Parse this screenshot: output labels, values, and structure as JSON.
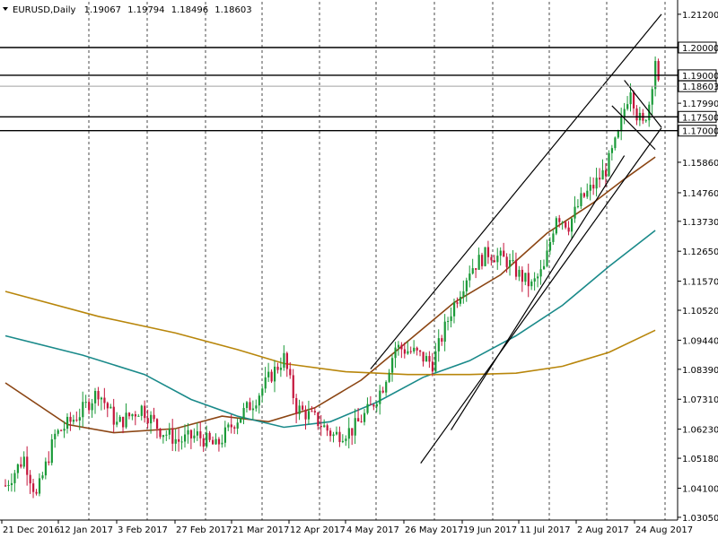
{
  "header": {
    "symbol": "EURUSD,Daily",
    "open": "1.19067",
    "high": "1.19794",
    "low": "1.18496",
    "close": "1.18603"
  },
  "colors": {
    "background": "#ffffff",
    "bull_candle": "#1a9a38",
    "bear_candle": "#c4163c",
    "ma_fast": "#8b4513",
    "ma_mid": "#1a8a8a",
    "ma_slow": "#b8860b",
    "lines": "#000000",
    "current_price_line": "#a0a0a0"
  },
  "chart_data": {
    "type": "candlestick",
    "title": "EURUSD,Daily",
    "ylim": [
      1.0295,
      1.2165
    ],
    "y_ticks": [
      "1.21200",
      "1.20000",
      "1.19000",
      "1.18603",
      "1.17990",
      "1.17500",
      "1.17000",
      "1.15860",
      "1.14760",
      "1.13730",
      "1.12650",
      "1.11570",
      "1.10520",
      "1.09440",
      "1.08390",
      "1.07310",
      "1.06230",
      "1.05180",
      "1.04100",
      "1.03050"
    ],
    "price_labels": [
      {
        "label": "1.20000",
        "value": 1.2
      },
      {
        "label": "1.19000",
        "value": 1.19
      },
      {
        "label": "1.18603",
        "value": 1.18603
      },
      {
        "label": "1.17500",
        "value": 1.175
      },
      {
        "label": "1.17000",
        "value": 1.17
      }
    ],
    "x_labels": [
      "21 Dec 2016",
      "12 Jan 2017",
      "3 Feb 2017",
      "27 Feb 2017",
      "21 Mar 2017",
      "12 Apr 2017",
      "4 May 2017",
      "26 May 2017",
      "19 Jun 2017",
      "11 Jul 2017",
      "2 Aug 2017",
      "24 Aug 2017"
    ],
    "horizontal_levels": [
      1.2,
      1.19,
      1.175,
      1.17
    ],
    "current_price": 1.18603,
    "trendlines": [
      {
        "name": "channel-upper",
        "from": [
          0,
          1.08
        ],
        "to": [
          0,
          1.2115
        ]
      },
      {
        "name": "channel-lower",
        "from": [
          0,
          1.05
        ],
        "to": [
          0,
          1.171
        ]
      },
      {
        "name": "channel-mid-lower",
        "from": [
          0,
          1.061
        ],
        "to": [
          0,
          1.182
        ]
      },
      {
        "name": "flag-upper",
        "from": [
          0,
          1.1882
        ],
        "to": [
          0,
          1.1712
        ]
      },
      {
        "name": "flag-lower",
        "from": [
          0,
          1.179
        ],
        "to": [
          0,
          1.1632
        ]
      }
    ],
    "moving_averages": [
      {
        "name": "MA-fast",
        "points": [
          [
            0,
            1.079
          ],
          [
            20,
            1.064
          ],
          [
            35,
            1.061
          ],
          [
            55,
            1.0625
          ],
          [
            70,
            1.067
          ],
          [
            85,
            1.065
          ],
          [
            100,
            1.07
          ],
          [
            115,
            1.08
          ],
          [
            130,
            1.094
          ],
          [
            145,
            1.108
          ],
          [
            160,
            1.118
          ],
          [
            175,
            1.133
          ],
          [
            190,
            1.144
          ],
          [
            200,
            1.1525
          ],
          [
            210,
            1.1605
          ]
        ]
      },
      {
        "name": "MA-mid",
        "points": [
          [
            0,
            1.096
          ],
          [
            25,
            1.089
          ],
          [
            45,
            1.082
          ],
          [
            60,
            1.073
          ],
          [
            75,
            1.067
          ],
          [
            90,
            1.063
          ],
          [
            105,
            1.065
          ],
          [
            120,
            1.072
          ],
          [
            135,
            1.081
          ],
          [
            150,
            1.087
          ],
          [
            165,
            1.096
          ],
          [
            180,
            1.107
          ],
          [
            195,
            1.121
          ],
          [
            210,
            1.134
          ]
        ]
      },
      {
        "name": "MA-slow",
        "points": [
          [
            0,
            1.112
          ],
          [
            30,
            1.103
          ],
          [
            55,
            1.097
          ],
          [
            75,
            1.091
          ],
          [
            90,
            1.086
          ],
          [
            110,
            1.083
          ],
          [
            130,
            1.082
          ],
          [
            150,
            1.082
          ],
          [
            165,
            1.0825
          ],
          [
            180,
            1.085
          ],
          [
            195,
            1.09
          ],
          [
            210,
            1.098
          ]
        ]
      }
    ]
  }
}
